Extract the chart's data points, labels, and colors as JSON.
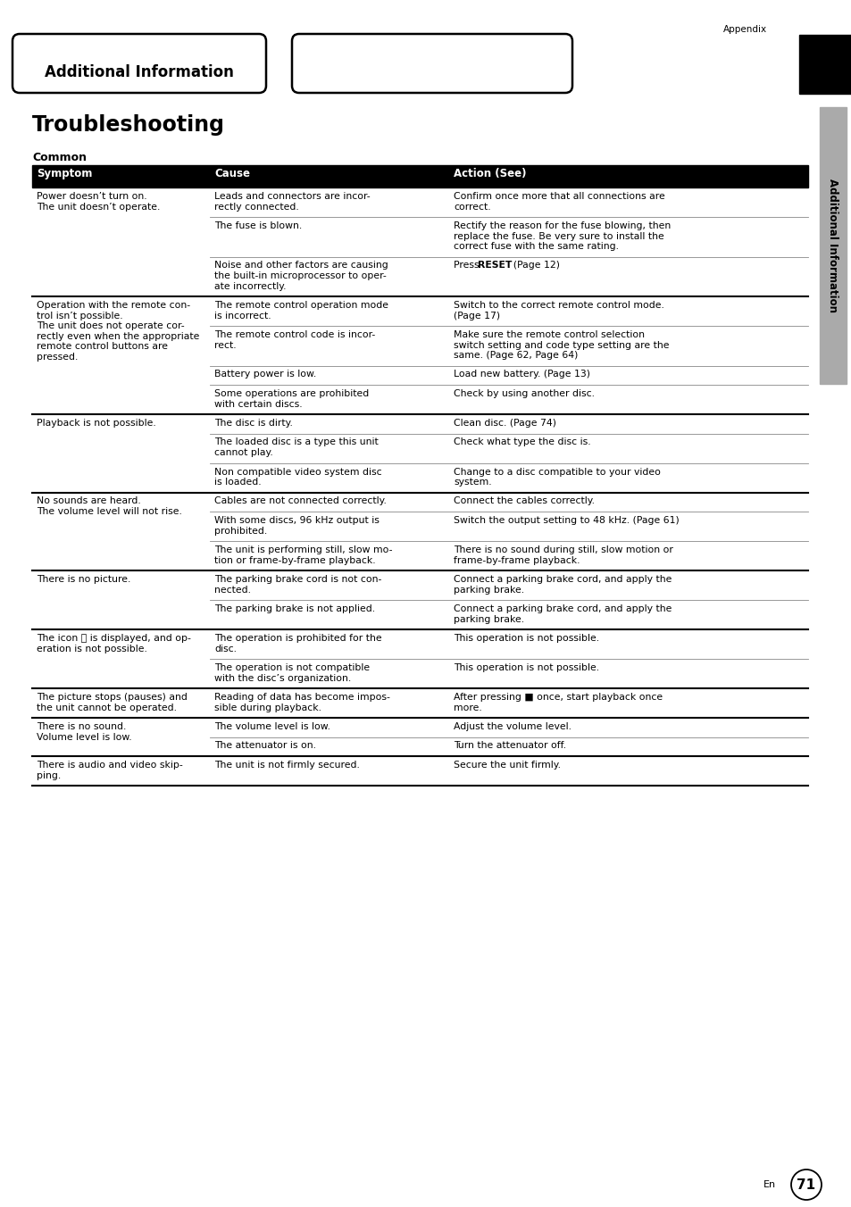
{
  "page_bg": "#ffffff",
  "title_text": "Additional Information",
  "appendix_label": "Appendix",
  "section_title": "Troubleshooting",
  "subsection": "Common",
  "header": [
    "Symptom",
    "Cause",
    "Action (See)"
  ],
  "side_label": "Additional Information",
  "footer_en": "En",
  "page_number": "71",
  "rows": [
    {
      "symptom": "Power doesn’t turn on.\nThe unit doesn’t operate.",
      "causes": [
        "Leads and connectors are incor-\nrectly connected.",
        "The fuse is blown.",
        "Noise and other factors are causing\nthe built-in microprocessor to oper-\nate incorrectly."
      ],
      "actions": [
        "Confirm once more that all connections are\ncorrect.",
        "Rectify the reason for the fuse blowing, then\nreplace the fuse. Be very sure to install the\ncorrect fuse with the same rating.",
        "Press [RESET]. (Page 12)"
      ]
    },
    {
      "symptom": "Operation with the remote con-\ntrol isn’t possible.\nThe unit does not operate cor-\nrectly even when the appropriate\nremote control buttons are\npressed.",
      "causes": [
        "The remote control operation mode\nis incorrect.",
        "The remote control code is incor-\nrect.",
        "Battery power is low.",
        "Some operations are prohibited\nwith certain discs."
      ],
      "actions": [
        "Switch to the correct remote control mode.\n(Page 17)",
        "Make sure the remote control selection\nswitch setting and code type setting are the\nsame. (Page 62, Page 64)",
        "Load new battery. (Page 13)",
        "Check by using another disc."
      ]
    },
    {
      "symptom": "Playback is not possible.",
      "causes": [
        "The disc is dirty.",
        "The loaded disc is a type this unit\ncannot play.",
        "Non compatible video system disc\nis loaded."
      ],
      "actions": [
        "Clean disc. (Page 74)",
        "Check what type the disc is.",
        "Change to a disc compatible to your video\nsystem."
      ]
    },
    {
      "symptom": "No sounds are heard.\nThe volume level will not rise.",
      "causes": [
        "Cables are not connected correctly.",
        "With some discs, 96 kHz output is\nprohibited.",
        "The unit is performing still, slow mo-\ntion or frame-by-frame playback."
      ],
      "actions": [
        "Connect the cables correctly.",
        "Switch the output setting to 48 kHz. (Page 61)",
        "There is no sound during still, slow motion or\nframe-by-frame playback."
      ]
    },
    {
      "symptom": "There is no picture.",
      "causes": [
        "The parking brake cord is not con-\nnected.",
        "The parking brake is not applied."
      ],
      "actions": [
        "Connect a parking brake cord, and apply the\nparking brake.",
        "Connect a parking brake cord, and apply the\nparking brake."
      ]
    },
    {
      "symptom": "The icon ␀ is displayed, and op-\neration is not possible.",
      "causes": [
        "The operation is prohibited for the\ndisc.",
        "The operation is not compatible\nwith the disc’s organization."
      ],
      "actions": [
        "This operation is not possible.",
        "This operation is not possible."
      ]
    },
    {
      "symptom": "The picture stops (pauses) and\nthe unit cannot be operated.",
      "causes": [
        "Reading of data has become impos-\nsible during playback."
      ],
      "actions": [
        "After pressing ■ once, start playback once\nmore."
      ]
    },
    {
      "symptom": "There is no sound.\nVolume level is low.",
      "causes": [
        "The volume level is low.",
        "The attenuator is on."
      ],
      "actions": [
        "Adjust the volume level.",
        "Turn the attenuator off."
      ]
    },
    {
      "symptom": "There is audio and video skip-\nping.",
      "causes": [
        "The unit is not firmly secured."
      ],
      "actions": [
        "Secure the unit firmly."
      ]
    }
  ]
}
